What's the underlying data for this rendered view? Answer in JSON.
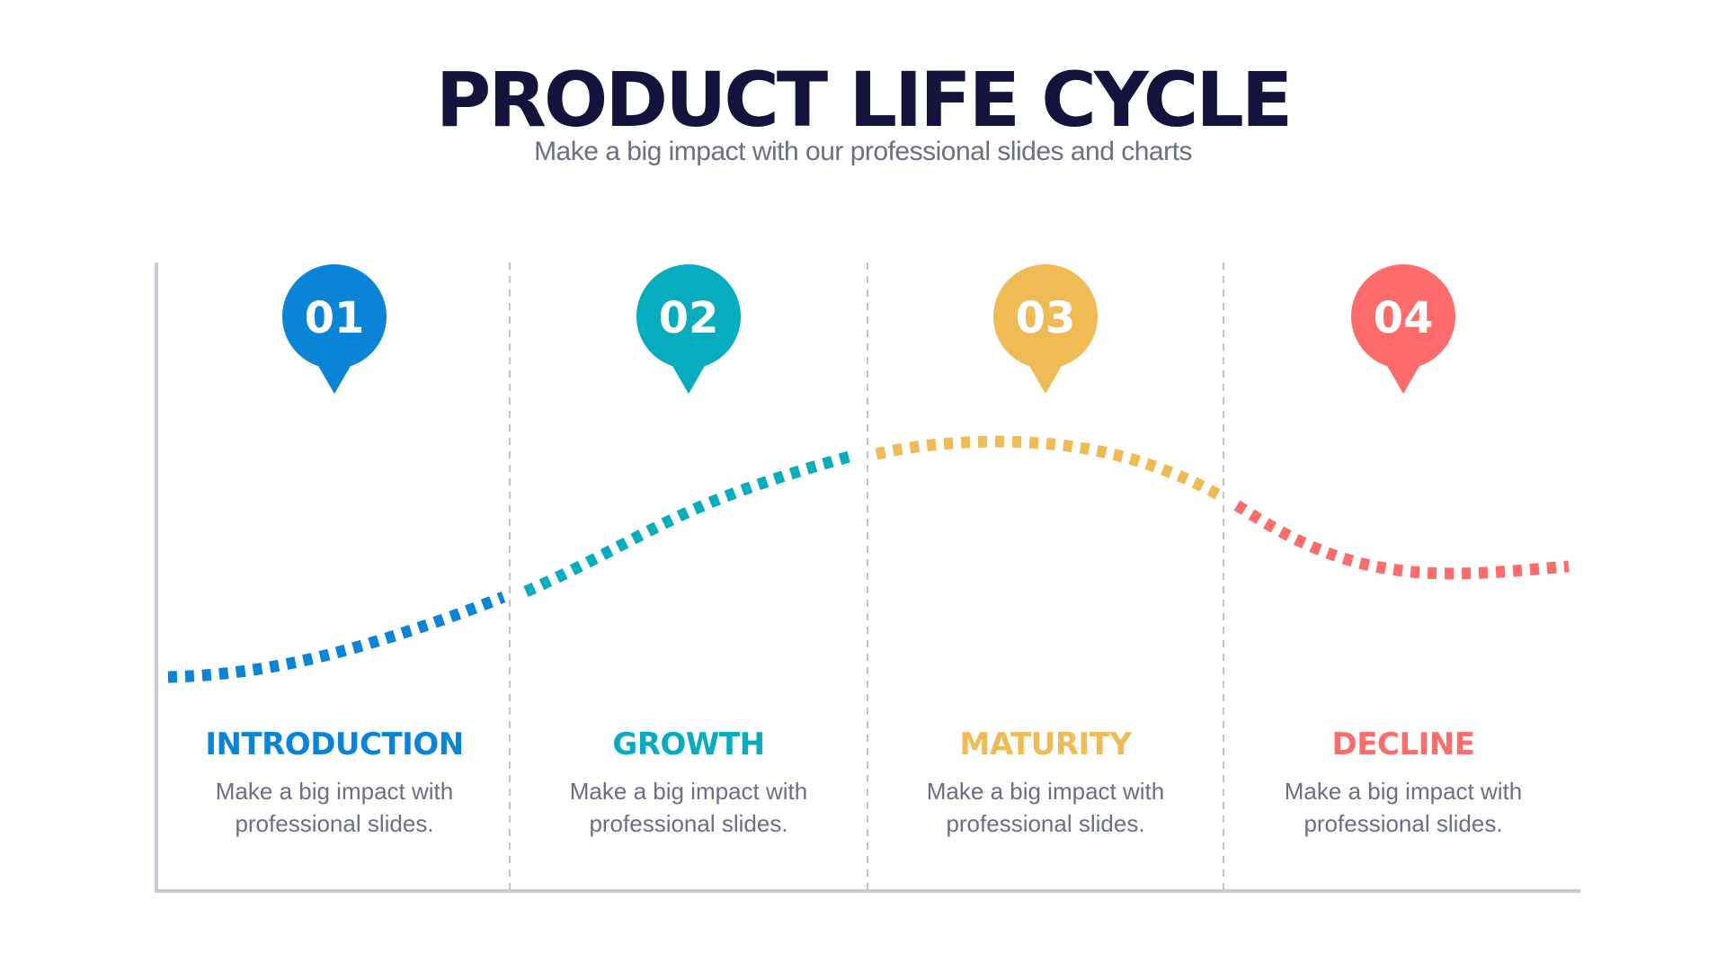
{
  "header": {
    "title": "PRODUCT LIFE CYCLE",
    "subtitle": "Make a big impact with our professional slides and charts"
  },
  "stages": [
    {
      "number": "01",
      "label": "INTRODUCTION",
      "description": "Make a big impact with professional slides.",
      "color": "#0984d6"
    },
    {
      "number": "02",
      "label": "GROWTH",
      "description": "Make a big impact with professional slides.",
      "color": "#06adbf"
    },
    {
      "number": "03",
      "label": "MATURITY",
      "description": "Make a big impact with professional slides.",
      "color": "#f0ba55"
    },
    {
      "number": "04",
      "label": "DECLINE",
      "description": "Make a big impact with professional slides.",
      "color": "#fd6b6b"
    }
  ]
}
